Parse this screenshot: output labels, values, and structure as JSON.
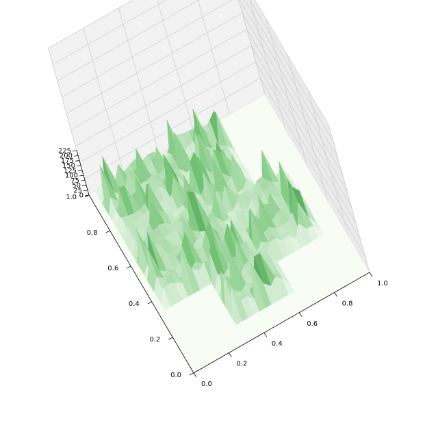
{
  "chart_data": {
    "type": "surface",
    "title": "",
    "xlabel": "",
    "ylabel": "",
    "zlabel": "",
    "colormap": "Greens",
    "xlim": [
      0,
      1
    ],
    "ylim": [
      0,
      1
    ],
    "zlim": [
      0,
      225
    ],
    "x_ticks": [
      "0.0",
      "0.2",
      "0.4",
      "0.6",
      "0.8",
      "1.0"
    ],
    "y_ticks": [
      "0.0",
      "0.2",
      "0.4",
      "0.6",
      "0.8",
      "1.0"
    ],
    "z_ticks": [
      "0",
      "25",
      "50",
      "75",
      "100",
      "125",
      "150",
      "175",
      "200",
      "225"
    ],
    "grid": true,
    "surface_description_values": {
      "grid_resolution": 30,
      "base_level": 0,
      "peak_max": 225
    }
  },
  "colors": {
    "pane": "#f2f2f2",
    "pane_edge": "#d9d9d9",
    "grid": "#cccccc",
    "surface_low": "#f7fcf5",
    "surface_high": "#00441b"
  }
}
